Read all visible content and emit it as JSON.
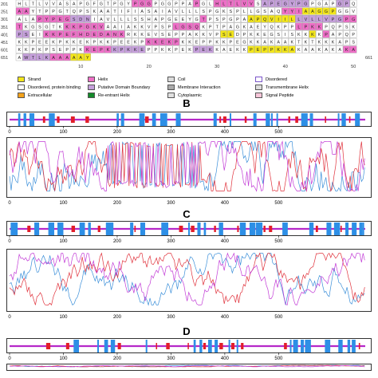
{
  "sequence": {
    "rows": [
      {
        "index": "201",
        "residues": "HLTLVVASAPGFGTPGYPGGPGGPPAPGLHLTLVVSAPEGYPGPGAPGPQ"
      },
      {
        "index": "251",
        "residues": "AAYTPPGTQPSKAATIFIASAIAVLLLSPGKSPLLGSAQYYIAAGGPGGV"
      },
      {
        "index": "301",
        "residues": "ALAPYPEGSDNIAVLLLSSHAPGEEYGTPSPGPAAPQVIILLVLLVPGPG"
      },
      {
        "index": "351",
        "residues": "TKGSGTKKKPGKVAAIAKKVPSPLGSQKPTPAGKAEYQKPPLPKKPQPSK"
      },
      {
        "index": "401",
        "residues": "PSEIKKPEFHDEDANKRKKEVSEPPAKKVPSEDPKKEGSISKKKKPAPQP"
      },
      {
        "index": "451",
        "residues": "KKPEEKPKKEKPKKPEEKPKKEKPKKEPPKKPEGKKAKAAKTKTKKKAPS"
      },
      {
        "index": "601",
        "residues": "KKPKPSEPPKKEPKKPKKEPPKKPEKPEKKAEKKPEPPKKAKAAKAKAKA"
      },
      {
        "index": "651",
        "residues": "AWTLKAAAAAY"
      }
    ],
    "end_index": "661",
    "ruler": [
      "10",
      "20",
      "30",
      "40",
      "50"
    ]
  },
  "legend": [
    {
      "label": "Strand",
      "color": "#f3e61b"
    },
    {
      "label": "Helix",
      "color": "#ee6fc7"
    },
    {
      "label": "Coil",
      "color": "#dcdcdc"
    },
    {
      "label": "Disordered",
      "color": "#ffffff"
    },
    {
      "label": "Disordered, protein binding",
      "color": "#ffffff"
    },
    {
      "label": "Putative Domain Boundary",
      "color": "#c6a0dc"
    },
    {
      "label": "Membrane Interaction",
      "color": "#aaaaaa"
    },
    {
      "label": "Transmembrane Helix",
      "color": "#dddddd"
    },
    {
      "label": "Extracellular",
      "color": "#f3a21b"
    },
    {
      "label": "Re-entrant Helix",
      "color": "#138a2a"
    },
    {
      "label": "Cytoplasmic",
      "color": "#e0e0e0"
    },
    {
      "label": "Signal Peptide",
      "color": "#f7c6d9"
    }
  ],
  "panels": {
    "B": {
      "letter": "B"
    },
    "C": {
      "letter": "C"
    },
    "D": {
      "letter": "D"
    }
  },
  "colors": {
    "helix_bar": "#2d8fe6",
    "strand_bar": "#e21e2a",
    "coil_line": "#b628c8",
    "series_blue": "#3b8fd9",
    "series_red": "#e0323c",
    "series_magenta": "#c23bd6"
  },
  "axis": {
    "ticks": [
      "0",
      "100",
      "200",
      "300",
      "400",
      "500"
    ],
    "max": 661
  }
}
